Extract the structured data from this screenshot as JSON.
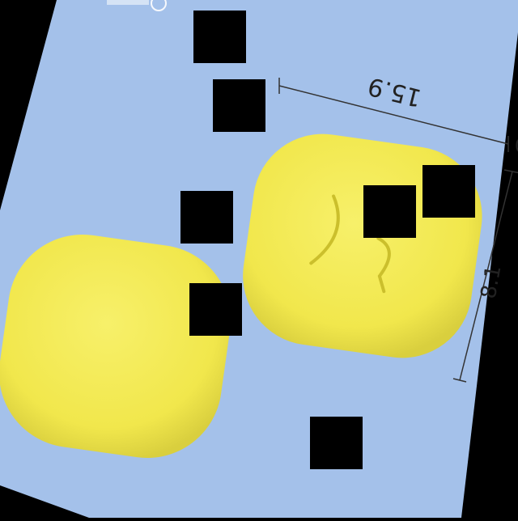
{
  "photo": {
    "background_color": "#a4c1ea",
    "pill_color": "#f3ea52",
    "pill_shadow_color": "#d9cf3e",
    "pills": [
      {
        "name": "left",
        "imprint": ""
      },
      {
        "name": "right",
        "imprint": "2"
      }
    ]
  },
  "measurements": {
    "length": "15.9",
    "width": "8.1",
    "unit_marker": "0"
  },
  "watermark": {
    "text": ""
  },
  "redaction_masks": {
    "count": 7,
    "color": "#000000"
  }
}
